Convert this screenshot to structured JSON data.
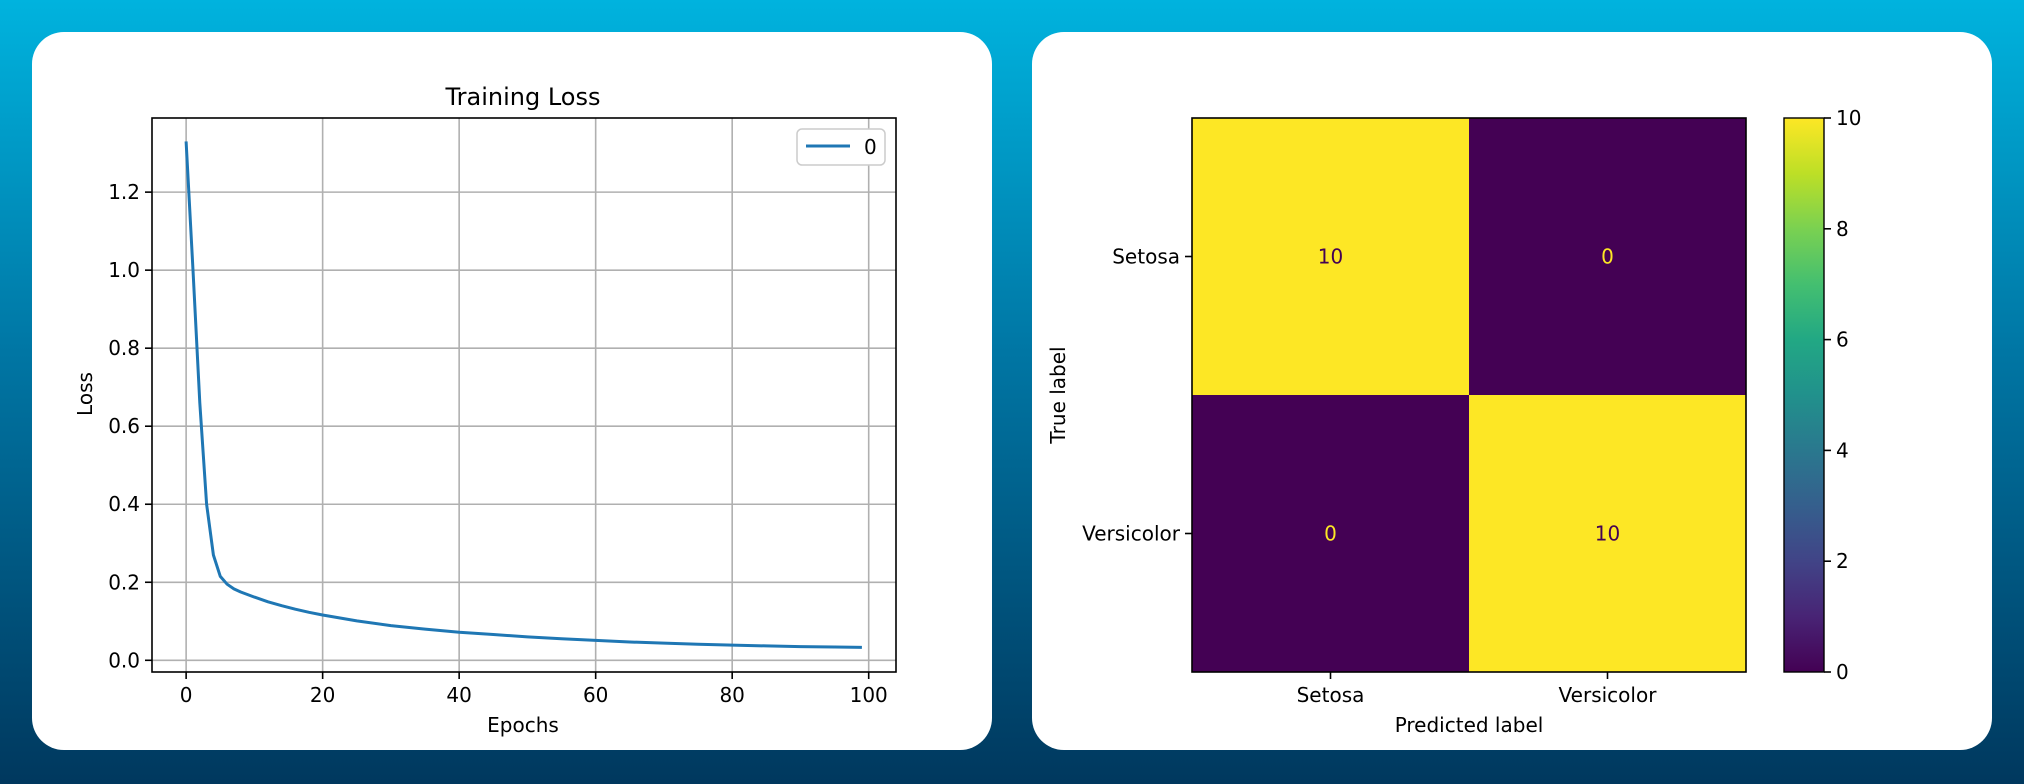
{
  "chart_data": [
    {
      "type": "line",
      "title": "Training Loss",
      "xlabel": "Epochs",
      "ylabel": "Loss",
      "xlim": [
        -5,
        104
      ],
      "ylim": [
        -0.03,
        1.39
      ],
      "xticks": [
        0,
        20,
        40,
        60,
        80,
        100
      ],
      "xtick_labels": [
        "0",
        "20",
        "40",
        "60",
        "80",
        "100"
      ],
      "yticks": [
        0.0,
        0.2,
        0.4,
        0.6,
        0.8,
        1.0,
        1.2
      ],
      "ytick_labels": [
        "0.0",
        "0.2",
        "0.4",
        "0.6",
        "0.8",
        "1.0",
        "1.2"
      ],
      "grid": true,
      "legend": "top-right",
      "series_color": "#1f77b4",
      "series": [
        {
          "name": "0",
          "x": [
            0,
            1,
            2,
            3,
            4,
            5,
            6,
            7,
            8,
            10,
            12,
            14,
            16,
            18,
            20,
            25,
            30,
            35,
            40,
            45,
            50,
            55,
            60,
            65,
            70,
            75,
            80,
            85,
            90,
            95,
            99
          ],
          "y": [
            1.33,
            1.0,
            0.66,
            0.4,
            0.27,
            0.215,
            0.195,
            0.183,
            0.175,
            0.162,
            0.15,
            0.14,
            0.131,
            0.123,
            0.116,
            0.101,
            0.089,
            0.08,
            0.072,
            0.066,
            0.06,
            0.055,
            0.051,
            0.047,
            0.044,
            0.041,
            0.039,
            0.037,
            0.035,
            0.034,
            0.033
          ]
        }
      ]
    },
    {
      "type": "heatmap",
      "title": "",
      "xlabel": "Predicted label",
      "ylabel": "True label",
      "x_categories": [
        "Setosa",
        "Versicolor"
      ],
      "y_categories": [
        "Setosa",
        "Versicolor"
      ],
      "values": [
        [
          10,
          0
        ],
        [
          0,
          10
        ]
      ],
      "value_labels": [
        [
          "10",
          "0"
        ],
        [
          "0",
          "10"
        ]
      ],
      "colormap": "viridis",
      "vmin": 0,
      "vmax": 10,
      "colorbar_ticks": [
        0,
        2,
        4,
        6,
        8,
        10
      ],
      "colorbar_tick_labels": [
        "0",
        "2",
        "4",
        "6",
        "8",
        "10"
      ],
      "high_color": "#fde725",
      "low_color": "#440154",
      "label_on_high": "#440154",
      "label_on_low": "#fde725"
    }
  ]
}
